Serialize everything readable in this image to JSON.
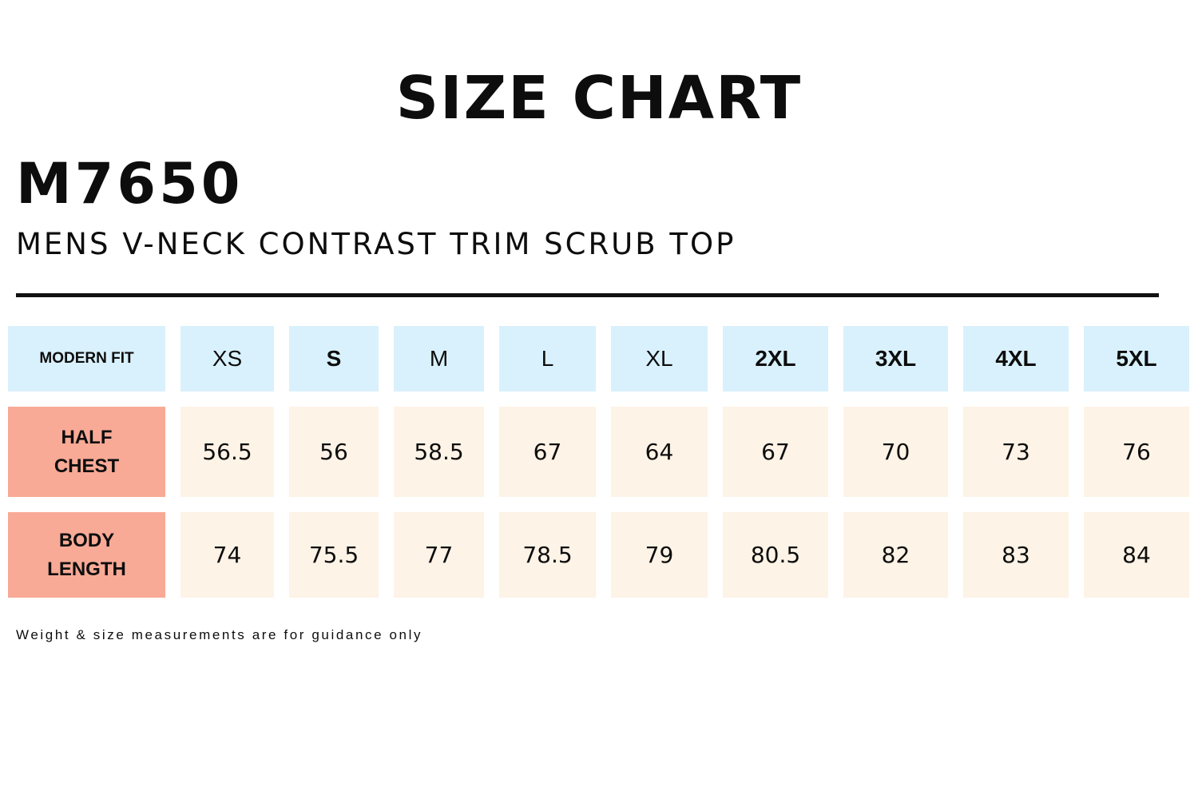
{
  "title": "SIZE CHART",
  "product_code": "M7650",
  "product_name": "MENS V-NECK CONTRAST TRIM SCRUB TOP",
  "colors": {
    "header_bg": "#d9f1fc",
    "row_label_bg": "#f8aa96",
    "cell_bg": "#fdf3e6"
  },
  "table": {
    "corner_label": "MODERN FIT",
    "sizes": [
      "XS",
      "S",
      "M",
      "L",
      "XL",
      "2XL",
      "3XL",
      "4XL",
      "5XL"
    ],
    "rows": [
      {
        "label_line1": "HALF",
        "label_line2": "CHEST",
        "values": [
          "56.5",
          "56",
          "58.5",
          "67",
          "64",
          "67",
          "70",
          "73",
          "76"
        ]
      },
      {
        "label_line1": "BODY",
        "label_line2": "LENGTH",
        "values": [
          "74",
          "75.5",
          "77",
          "78.5",
          "79",
          "80.5",
          "82",
          "83",
          "84"
        ]
      }
    ]
  },
  "note": "Weight & size measurements are for guidance only"
}
